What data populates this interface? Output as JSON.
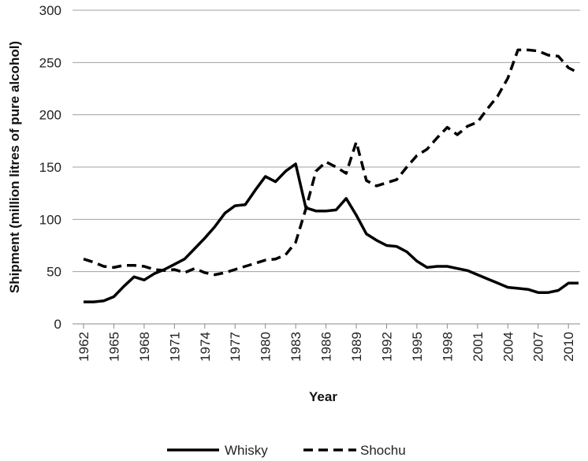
{
  "chart_data": {
    "type": "line",
    "title": "",
    "xlabel": "Year",
    "ylabel": "Shipment (million litres of pure alcohol)",
    "ylim": [
      0,
      300
    ],
    "yticks": [
      0,
      50,
      100,
      150,
      200,
      250,
      300
    ],
    "xlim": [
      1962,
      2011
    ],
    "xticks": [
      1962,
      1965,
      1968,
      1971,
      1974,
      1977,
      1980,
      1983,
      1986,
      1989,
      1992,
      1995,
      1998,
      2001,
      2004,
      2007,
      2010
    ],
    "grid": "horizontal",
    "legend_position": "bottom",
    "x": [
      1962,
      1963,
      1964,
      1965,
      1966,
      1967,
      1968,
      1969,
      1970,
      1971,
      1972,
      1973,
      1974,
      1975,
      1976,
      1977,
      1978,
      1979,
      1980,
      1981,
      1982,
      1983,
      1984,
      1985,
      1986,
      1987,
      1988,
      1989,
      1990,
      1991,
      1992,
      1993,
      1994,
      1995,
      1996,
      1997,
      1998,
      1999,
      2000,
      2001,
      2002,
      2003,
      2004,
      2005,
      2006,
      2007,
      2008,
      2009,
      2010,
      2011
    ],
    "series": [
      {
        "name": "Whisky",
        "color": "#000000",
        "dash": "solid",
        "values": [
          21,
          21,
          22,
          26,
          36,
          45,
          42,
          48,
          52,
          57,
          62,
          72,
          82,
          93,
          106,
          113,
          114,
          128,
          141,
          136,
          146,
          153,
          111,
          108,
          108,
          109,
          120,
          104,
          86,
          80,
          75,
          74,
          69,
          60,
          54,
          55,
          55,
          53,
          51,
          47,
          43,
          39,
          35,
          34,
          33,
          30,
          30,
          32,
          39,
          39
        ]
      },
      {
        "name": "Shochu",
        "color": "#000000",
        "dash": "dashed",
        "values": [
          62,
          59,
          55,
          54,
          56,
          56,
          55,
          52,
          51,
          52,
          49,
          53,
          49,
          47,
          49,
          52,
          55,
          58,
          61,
          62,
          66,
          78,
          110,
          146,
          155,
          150,
          144,
          174,
          137,
          132,
          135,
          138,
          150,
          161,
          167,
          178,
          188,
          181,
          189,
          193,
          206,
          218,
          235,
          262,
          262,
          261,
          257,
          256,
          245,
          240
        ]
      }
    ]
  }
}
